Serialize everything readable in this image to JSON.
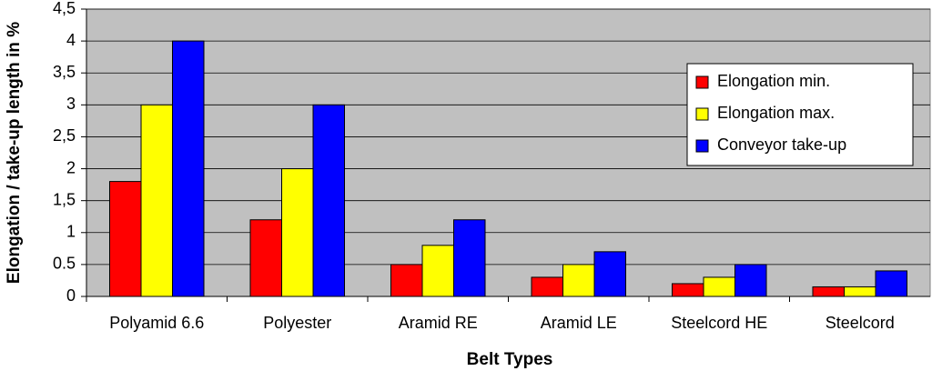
{
  "chart_data": {
    "type": "bar",
    "y_label": "Elongation / take-up length in %",
    "x_label": "Belt Types",
    "categories": [
      "Polyamid 6.6",
      "Polyester",
      "Aramid RE",
      "Aramid LE",
      "Steelcord HE",
      "Steelcord"
    ],
    "series": [
      {
        "name": "Elongation min.",
        "color": "#ff0000",
        "values": [
          1.8,
          1.2,
          0.5,
          0.3,
          0.2,
          0.15
        ]
      },
      {
        "name": "Elongation max.",
        "color": "#ffff00",
        "values": [
          3,
          2,
          0.8,
          0.5,
          0.3,
          0.15
        ]
      },
      {
        "name": "Conveyor take-up",
        "color": "#0000ff",
        "values": [
          4,
          3,
          1.2,
          0.7,
          0.5,
          0.4
        ]
      }
    ],
    "ylim": [
      0,
      4.5
    ],
    "yticks": [
      0,
      0.5,
      {
        "value": 1,
        "label": "1"
      },
      {
        "value": 1.5,
        "label": "1,5"
      },
      2,
      {
        "value": 2.5,
        "label": "2,5"
      },
      3,
      {
        "value": 3.5,
        "label": "3,5"
      },
      4,
      {
        "value": 4.5,
        "label": "4,5"
      }
    ],
    "grid": true,
    "plot_color": "#c0c0c0",
    "legend": "right"
  }
}
